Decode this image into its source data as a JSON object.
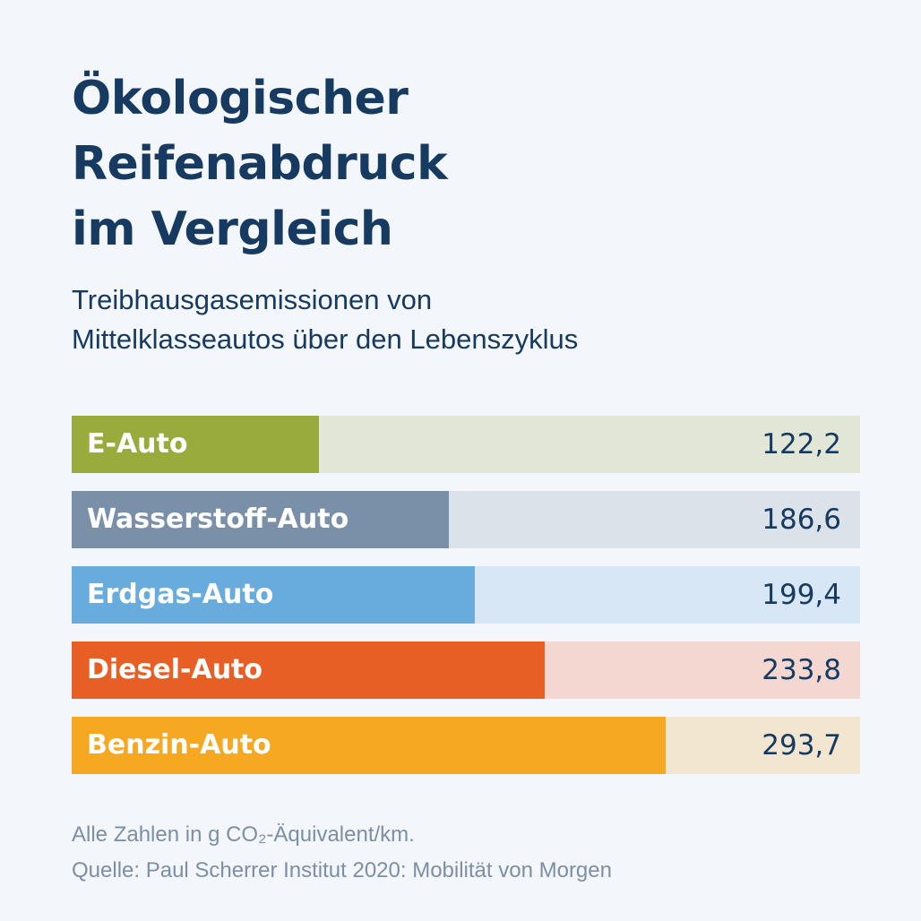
{
  "title_lines": [
    "Ökologischer",
    "Reifenabdruck",
    "im Vergleich"
  ],
  "subtitle_lines": [
    "Treibhausgasemissionen von",
    "Mittelklasseautos über den Lebenszyklus"
  ],
  "chart_data": {
    "type": "bar",
    "orientation": "horizontal",
    "title": "Ökologischer Reifenabdruck im Vergleich",
    "subtitle": "Treibhausgasemissionen von Mittelklasseautos über den Lebenszyklus",
    "categories": [
      "E-Auto",
      "Wasserstoff-Auto",
      "Erdgas-Auto",
      "Diesel-Auto",
      "Benzin-Auto"
    ],
    "values": [
      122.2,
      186.6,
      199.4,
      233.8,
      293.7
    ],
    "value_labels": [
      "122,2",
      "186,6",
      "199,4",
      "233,8",
      "293,7"
    ],
    "bar_colors": [
      "#98ab3c",
      "#7990a8",
      "#68abdd",
      "#e85f25",
      "#f6a823"
    ],
    "track_colors": [
      "#e2e6d6",
      "#dce2ea",
      "#d8e7f5",
      "#f4d7d1",
      "#f3e6d1"
    ],
    "xlim": [
      0,
      390
    ],
    "xlabel": "g CO₂-Äquivalent/km",
    "ylabel": ""
  },
  "footer": {
    "note": "Alle Zahlen in g CO₂-Äquivalent/km.",
    "source": "Quelle: Paul Scherrer Institut 2020: Mobilität von Morgen"
  },
  "colors": {
    "background": "#f3f6fa",
    "title": "#173a61",
    "footer": "#7d8fa4"
  }
}
